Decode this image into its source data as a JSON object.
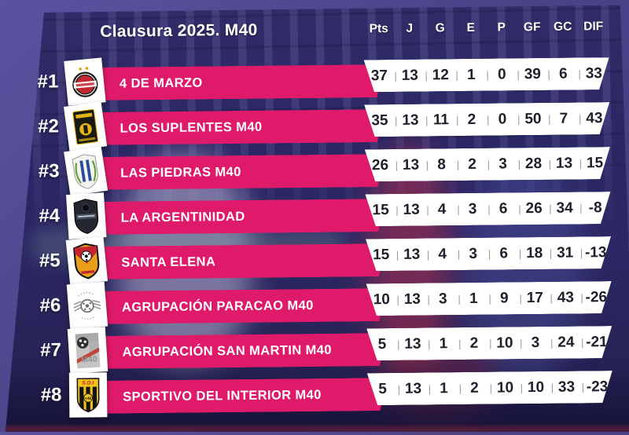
{
  "title": "Clausura 2025. M40",
  "separator": "|",
  "colors": {
    "accent_pink": "#DF1A6A",
    "frame_purple": "#4B4489",
    "panel_navy": "#2E2A6C",
    "bar_white": "#FFFFFF",
    "stat_text": "#20202C",
    "header_text": "#FFFFFF"
  },
  "chart_data": {
    "type": "table",
    "title": "Clausura 2025. M40",
    "columns": [
      "Pts",
      "J",
      "G",
      "E",
      "P",
      "GF",
      "GC",
      "DIF"
    ],
    "teams": [
      {
        "rank": "#1",
        "name": "4 DE MARZO",
        "values": [
          37,
          13,
          12,
          1,
          0,
          39,
          6,
          33
        ]
      },
      {
        "rank": "#2",
        "name": "LOS SUPLENTES M40",
        "values": [
          35,
          13,
          11,
          2,
          0,
          50,
          7,
          43
        ]
      },
      {
        "rank": "#3",
        "name": "LAS PIEDRAS M40",
        "values": [
          26,
          13,
          8,
          2,
          3,
          28,
          13,
          15
        ]
      },
      {
        "rank": "#4",
        "name": "LA ARGENTINIDAD",
        "values": [
          15,
          13,
          4,
          3,
          6,
          26,
          34,
          -8
        ]
      },
      {
        "rank": "#5",
        "name": "SANTA ELENA",
        "values": [
          15,
          13,
          4,
          3,
          6,
          18,
          31,
          -13
        ]
      },
      {
        "rank": "#6",
        "name": "AGRUPACIÓN PARACAO M40",
        "values": [
          10,
          13,
          3,
          1,
          9,
          17,
          43,
          -26
        ]
      },
      {
        "rank": "#7",
        "name": "AGRUPACIÓN SAN MARTIN M40",
        "values": [
          5,
          13,
          1,
          2,
          10,
          3,
          24,
          -21
        ]
      },
      {
        "rank": "#8",
        "name": "SPORTIVO DEL INTERIOR M40",
        "values": [
          5,
          13,
          1,
          2,
          10,
          10,
          33,
          -23
        ]
      }
    ]
  },
  "logos": [
    {
      "kind": "circle-badge",
      "c1": "#1D1D1B",
      "c2": "#C22830",
      "c3": "#FFFFFF",
      "c4": "#D9A61C"
    },
    {
      "kind": "rect-badge",
      "c1": "#191913",
      "c2": "#E3B50F"
    },
    {
      "kind": "shield-wreath",
      "c1": "#F4F4EE",
      "c2": "#2B4A9E",
      "c3": "#5A9E3A"
    },
    {
      "kind": "shield-dark",
      "c1": "#23262E",
      "c2": "#4A5160"
    },
    {
      "kind": "shield-red-yellow",
      "c1": "#C6252D",
      "c2": "#E89F1A",
      "c3": "#111111"
    },
    {
      "kind": "wings-ball",
      "c1": "#9A9A9A",
      "c2": "#6E6E6E"
    },
    {
      "kind": "grunge-m40",
      "c1": "#C4C4C4",
      "c2": "#C0392B",
      "c3": "#8F8F8F",
      "text": "M40"
    },
    {
      "kind": "shield-sdi",
      "c1": "#F0C419",
      "c2": "#141414",
      "c3": "#CC2222",
      "text": "S.D.I",
      "text2": "+40"
    }
  ]
}
